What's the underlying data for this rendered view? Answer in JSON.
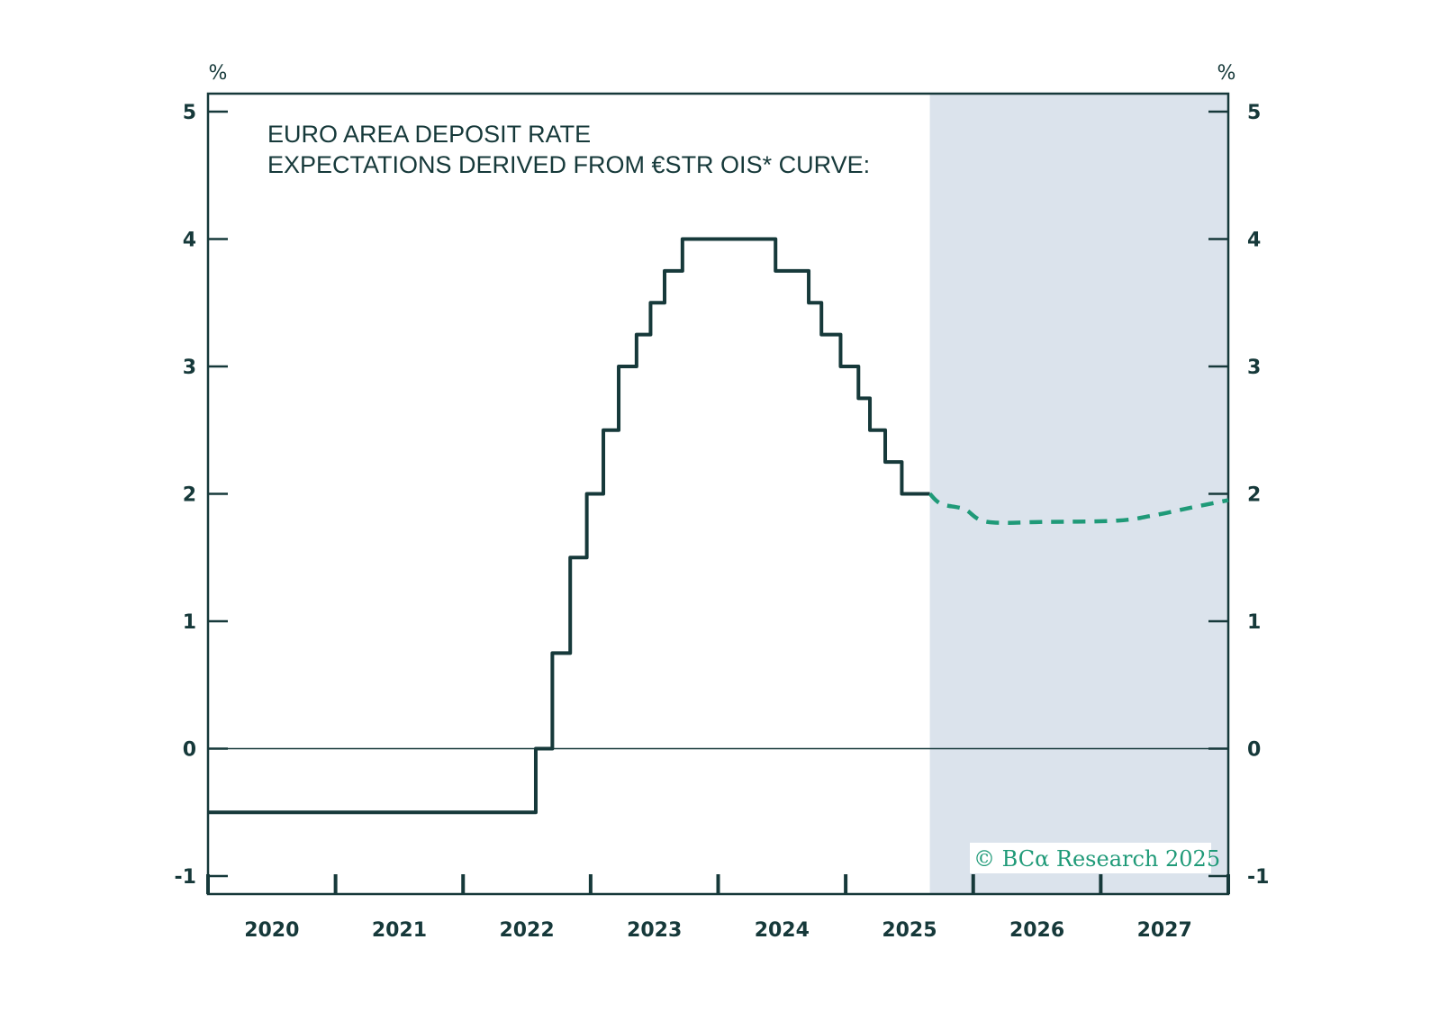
{
  "chart_data": {
    "type": "line",
    "title": "EURO AREA DEPOSIT RATE",
    "subtitle": "EXPECTATIONS DERIVED FROM €STR OIS* CURVE:",
    "ylabel_left": "%",
    "ylabel_right": "%",
    "xlabel": "",
    "xlim": [
      2020,
      2028
    ],
    "ylim": [
      -1,
      5
    ],
    "yticks": [
      -1,
      0,
      1,
      2,
      3,
      4,
      5
    ],
    "ytick_labels": [
      "-1",
      "0",
      "1",
      "2",
      "3",
      "4",
      "5"
    ],
    "xtick_positions": [
      2020,
      2021,
      2022,
      2023,
      2024,
      2025,
      2026,
      2027,
      2028
    ],
    "xtick_labels": [
      "2020",
      "2021",
      "2022",
      "2023",
      "2024",
      "2025",
      "2026",
      "2027"
    ],
    "grid": false,
    "zero_line": true,
    "shaded_region": {
      "from": 2025.66,
      "to": 2028,
      "color": "#dbe3ec"
    },
    "series": [
      {
        "name": "Deposit rate",
        "style": "step",
        "color": "#16393a",
        "points": [
          [
            2020.0,
            -0.5
          ],
          [
            2022.57,
            0
          ],
          [
            2022.7,
            0.75
          ],
          [
            2022.84,
            1.5
          ],
          [
            2022.97,
            2.0
          ],
          [
            2023.1,
            2.5
          ],
          [
            2023.22,
            3.0
          ],
          [
            2023.36,
            3.25
          ],
          [
            2023.47,
            3.5
          ],
          [
            2023.58,
            3.75
          ],
          [
            2023.72,
            4.0
          ],
          [
            2024.45,
            3.75
          ],
          [
            2024.71,
            3.5
          ],
          [
            2024.81,
            3.25
          ],
          [
            2024.96,
            3.0
          ],
          [
            2025.1,
            2.75
          ],
          [
            2025.19,
            2.5
          ],
          [
            2025.31,
            2.25
          ],
          [
            2025.44,
            2.0
          ],
          [
            2025.66,
            2.0
          ]
        ]
      },
      {
        "name": "€STR OIS expectations",
        "style": "dashed",
        "color": "#1f9a78",
        "points": [
          [
            2025.66,
            2.0
          ],
          [
            2025.75,
            1.92
          ],
          [
            2025.93,
            1.88
          ],
          [
            2026.11,
            1.78
          ],
          [
            2026.57,
            1.78
          ],
          [
            2027.13,
            1.79
          ],
          [
            2027.41,
            1.83
          ],
          [
            2027.7,
            1.89
          ],
          [
            2028.0,
            1.95
          ]
        ]
      }
    ],
    "annotation": "© BCα Research 2025"
  },
  "colors": {
    "axis": "#16393a",
    "shade": "#dbe3ec",
    "forecast": "#1f9a78"
  }
}
